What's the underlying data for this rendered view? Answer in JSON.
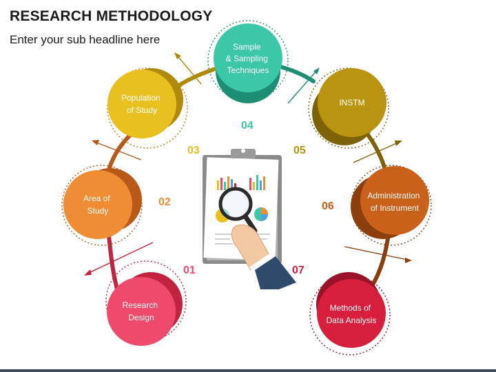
{
  "header": {
    "title": "RESEARCH METHODOLOGY",
    "subtitle": "Enter your sub headline here"
  },
  "steps": [
    {
      "number": "01",
      "lines": [
        "Research",
        "Design"
      ],
      "color": "#ef4a6b",
      "shade": "#c2243f"
    },
    {
      "number": "02",
      "lines": [
        "Area of",
        "Study"
      ],
      "color": "#ef8c34",
      "shade": "#b8591a"
    },
    {
      "number": "03",
      "lines": [
        "Population",
        "of Study"
      ],
      "color": "#e8c020",
      "shade": "#b08a0c"
    },
    {
      "number": "04",
      "lines": [
        "Sample",
        "& Sampling",
        "Techniques"
      ],
      "color": "#3cc7a8",
      "shade": "#1d8d74"
    },
    {
      "number": "05",
      "lines": [
        "INSTM"
      ],
      "color": "#b99410",
      "shade": "#7e6208"
    },
    {
      "number": "06",
      "lines": [
        "Administration",
        "of Instrument"
      ],
      "color": "#c9611a",
      "shade": "#8c3e0c"
    },
    {
      "number": "07",
      "lines": [
        "Methods of",
        "Data Analysis"
      ],
      "color": "#d71e3c",
      "shade": "#981228"
    }
  ]
}
